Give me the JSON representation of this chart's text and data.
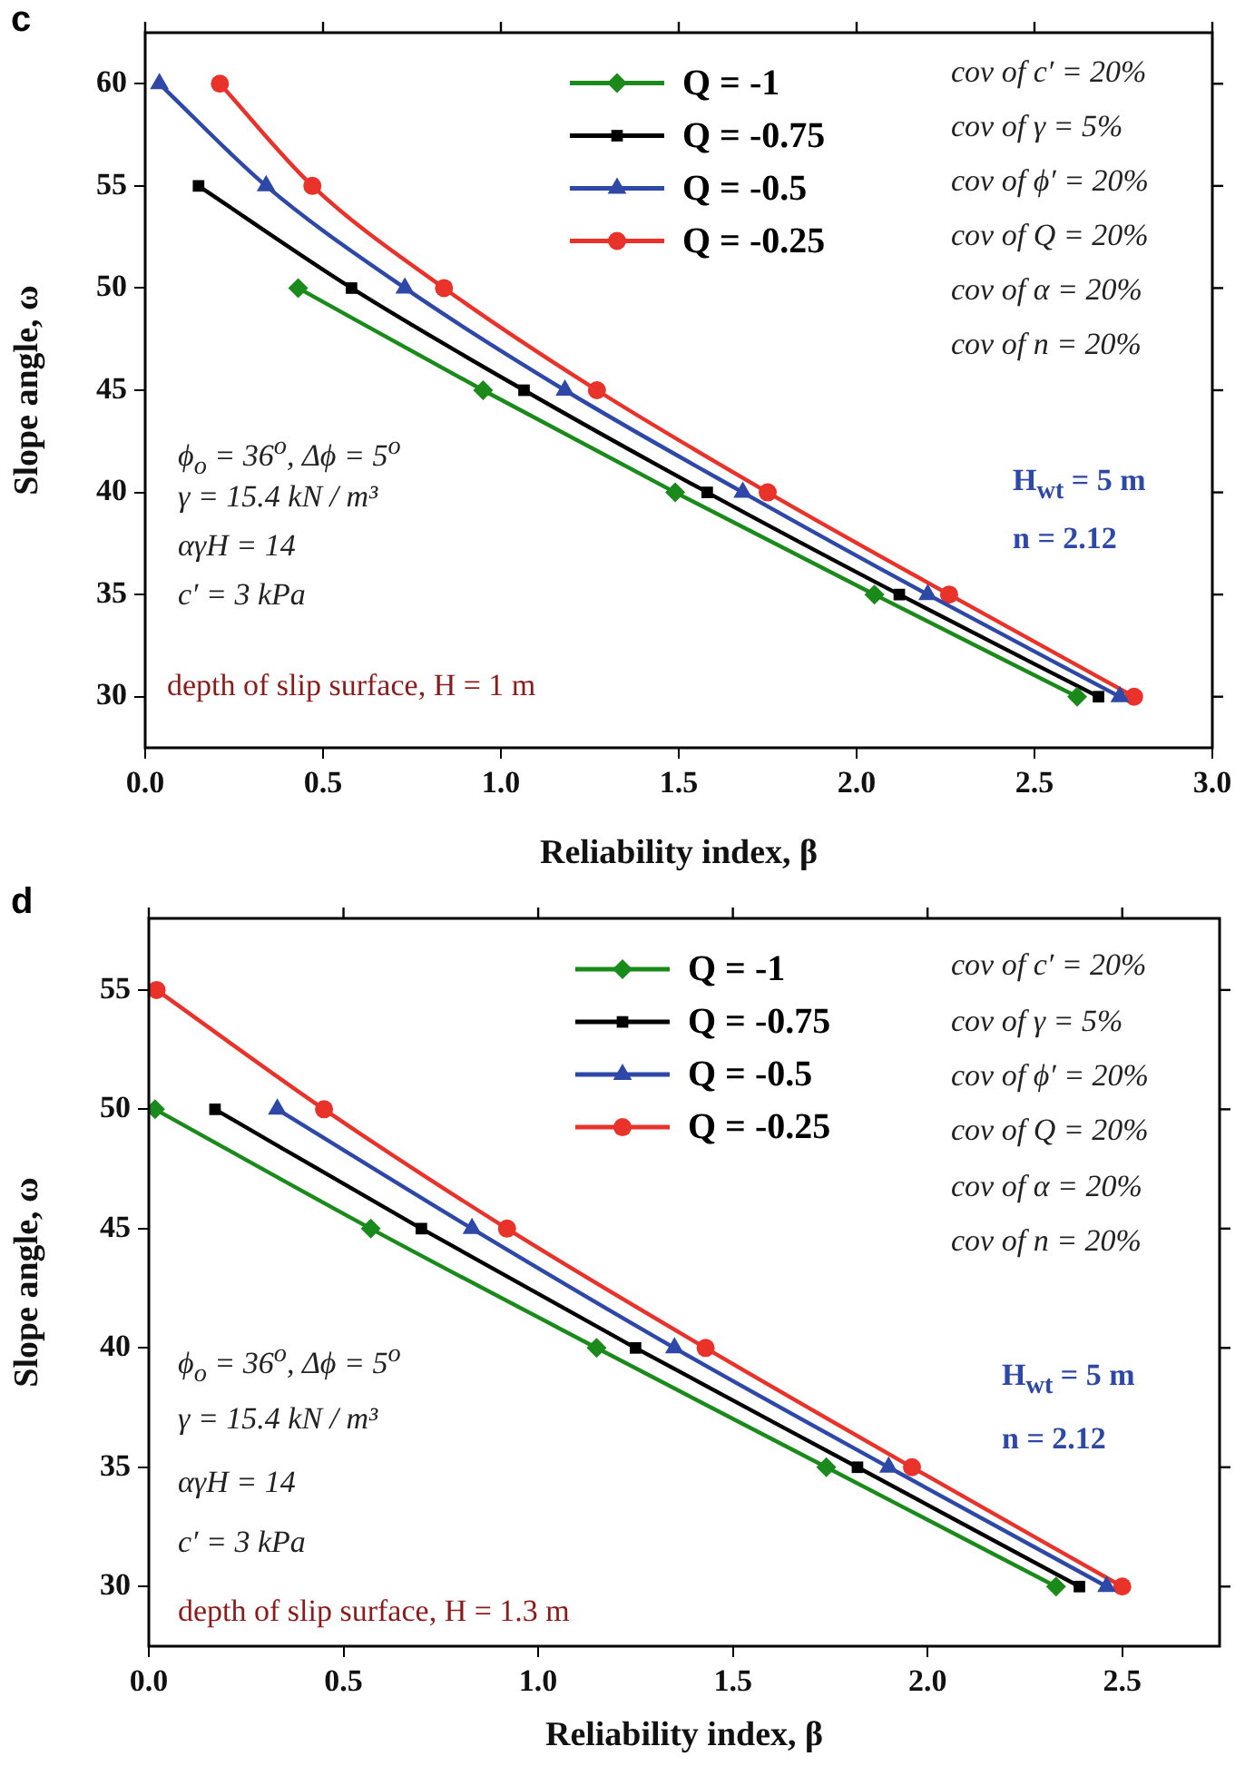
{
  "chart_data": [
    {
      "type": "line",
      "title": "c",
      "xlabel": "Reliability index, β",
      "ylabel": "Slope angle, ω",
      "xlim": [
        0,
        3
      ],
      "xticks": [
        {
          "value": 0,
          "label": "0.0"
        },
        0.5,
        {
          "value": 1,
          "label": "1.0"
        },
        1.5,
        {
          "value": 2,
          "label": "2.0"
        },
        2.5,
        {
          "value": 3,
          "label": "3.0"
        }
      ],
      "ylim": [
        27.5,
        62.5
      ],
      "yticks": [
        30,
        35,
        40,
        45,
        50,
        55,
        60
      ],
      "legend": "top",
      "grid": false,
      "series": [
        {
          "name": "Q = -1",
          "color": "#1a8a1a",
          "marker": "diamond",
          "x": [
            0.43,
            0.95,
            1.49,
            2.05,
            2.62
          ],
          "values": [
            50,
            45,
            40,
            35,
            30
          ]
        },
        {
          "name": "Q = -0.75",
          "color": "#000000",
          "marker": "square",
          "x": [
            0.15,
            0.58,
            1.065,
            1.58,
            2.12,
            2.68
          ],
          "values": [
            55,
            50,
            45,
            40,
            35,
            30
          ]
        },
        {
          "name": "Q = -0.5",
          "color": "#2e48a8",
          "marker": "triangle",
          "x": [
            0.04,
            0.34,
            0.73,
            1.18,
            1.68,
            2.2,
            2.74
          ],
          "values": [
            60,
            55,
            50,
            45,
            40,
            35,
            30
          ]
        },
        {
          "name": "Q = -0.25",
          "color": "#e8322a",
          "marker": "circle",
          "x": [
            0.21,
            0.47,
            0.84,
            1.27,
            1.75,
            2.26,
            2.78
          ],
          "values": [
            60,
            55,
            50,
            45,
            40,
            35,
            30
          ]
        }
      ],
      "annotations": [
        "cov of c′ = 20%",
        "cov of γ = 5%",
        "cov of ϕ′ = 20%",
        "cov of Q = 20%",
        "cov of α = 20%",
        "cov of n = 20%",
        "ϕ$_{o}$ = 36$^{o}$, Δϕ = 5$^{o}$",
        "γ = 15.4 kN / m³",
        "αγH = 14",
        "c′ = 3 kPa",
        "depth of slip surface, H = 1 m",
        "H$_{wt}$ = 5 m",
        "n = 2.12"
      ]
    },
    {
      "type": "line",
      "title": "d",
      "xlabel": "Reliability index, β",
      "ylabel": "Slope angle, ω",
      "xlim": [
        0,
        2.75
      ],
      "xticks": [
        {
          "value": 0,
          "label": "0.0"
        },
        0.5,
        {
          "value": 1,
          "label": "1.0"
        },
        1.5,
        {
          "value": 2,
          "label": "2.0"
        },
        2.5
      ],
      "ylim": [
        27.5,
        58
      ],
      "yticks": [
        30,
        35,
        40,
        45,
        50,
        55
      ],
      "legend": "top",
      "grid": false,
      "series": [
        {
          "name": "Q = -1",
          "color": "#1a8a1a",
          "marker": "diamond",
          "x": [
            0.016,
            0.57,
            1.15,
            1.74,
            2.33
          ],
          "values": [
            50,
            45,
            40,
            35,
            30
          ]
        },
        {
          "name": "Q = -0.75",
          "color": "#000000",
          "marker": "square",
          "x": [
            0.17,
            0.7,
            1.25,
            1.82,
            2.39
          ],
          "values": [
            50,
            45,
            40,
            35,
            30
          ]
        },
        {
          "name": "Q = -0.5",
          "color": "#2e48a8",
          "marker": "triangle",
          "x": [
            0.33,
            0.83,
            1.35,
            1.9,
            2.46
          ],
          "values": [
            50,
            45,
            40,
            35,
            30
          ]
        },
        {
          "name": "Q = -0.25",
          "color": "#e8322a",
          "marker": "circle",
          "x": [
            0.02,
            0.45,
            0.92,
            1.43,
            1.96,
            2.5
          ],
          "values": [
            55,
            50,
            45,
            40,
            35,
            30
          ]
        }
      ],
      "annotations": [
        "cov of c′ = 20%",
        "cov of γ = 5%",
        "cov of ϕ′ = 20%",
        "cov of Q = 20%",
        "cov of α = 20%",
        "cov of n = 20%",
        "ϕ$_{o}$ = 36$^{o}$, Δϕ = 5$^{o}$",
        "γ = 15.4 kN / m³",
        "αγH = 14",
        "c′ = 3 kPa",
        "depth of slip surface, H = 1.3 m",
        "H$_{wt}$ = 5 m",
        "n = 2.12"
      ]
    }
  ]
}
